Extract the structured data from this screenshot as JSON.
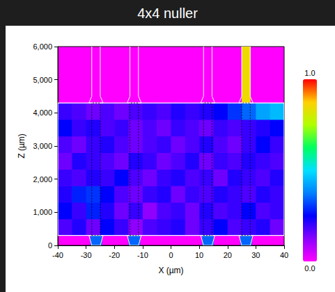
{
  "chart_data": {
    "type": "heatmap",
    "title": "4x4 nuller",
    "x_label": "X (µm)",
    "y_label": "Z (µm)",
    "xlim": [
      -40,
      40
    ],
    "xticks": [
      -40,
      -30,
      -20,
      -10,
      0,
      10,
      20,
      30,
      40
    ],
    "ylim": [
      0,
      6000
    ],
    "yticks": [
      0,
      1000,
      2000,
      3000,
      4000,
      5000,
      6000
    ],
    "x_bins": [
      -40,
      -35,
      -30,
      -25,
      -20,
      -15,
      -10,
      -5,
      0,
      5,
      10,
      15,
      20,
      25,
      30,
      35,
      40
    ],
    "z_bins": [
      300,
      800,
      1300,
      1800,
      2300,
      2800,
      3300,
      3800,
      4300
    ],
    "cells": [
      [
        0.18,
        0.22,
        0.15,
        0.25,
        0.2,
        0.12,
        0.18,
        0.2,
        0.22,
        0.15,
        0.2,
        0.25,
        0.18,
        0.2,
        0.22,
        0.15
      ],
      [
        0.25,
        0.2,
        0.28,
        0.22,
        0.15,
        0.2,
        0.12,
        0.18,
        0.2,
        0.15,
        0.22,
        0.18,
        0.2,
        0.25,
        0.18,
        0.2
      ],
      [
        0.22,
        0.28,
        0.3,
        0.25,
        0.18,
        0.15,
        0.2,
        0.22,
        0.15,
        0.2,
        0.18,
        0.22,
        0.2,
        0.18,
        0.22,
        0.2
      ],
      [
        0.2,
        0.18,
        0.22,
        0.2,
        0.25,
        0.18,
        0.15,
        0.2,
        0.22,
        0.18,
        0.2,
        0.15,
        0.22,
        0.2,
        0.18,
        0.22
      ],
      [
        0.15,
        0.22,
        0.2,
        0.18,
        0.15,
        0.22,
        0.2,
        0.15,
        0.18,
        0.22,
        0.15,
        0.2,
        0.18,
        0.22,
        0.2,
        0.18
      ],
      [
        0.18,
        0.15,
        0.2,
        0.22,
        0.18,
        0.15,
        0.18,
        0.2,
        0.15,
        0.18,
        0.22,
        0.18,
        0.15,
        0.2,
        0.25,
        0.2
      ],
      [
        0.25,
        0.2,
        0.22,
        0.18,
        0.2,
        0.15,
        0.18,
        0.15,
        0.2,
        0.18,
        0.15,
        0.2,
        0.18,
        0.2,
        0.22,
        0.25
      ],
      [
        0.2,
        0.18,
        0.15,
        0.18,
        0.15,
        0.18,
        0.2,
        0.18,
        0.22,
        0.2,
        0.22,
        0.25,
        0.3,
        0.35,
        0.42,
        0.45
      ]
    ],
    "fields": [
      {
        "x": [
          25,
          28
        ],
        "z": [
          4300,
          6000
        ],
        "value": 0.85
      },
      {
        "x": [
          -28.5,
          -24.5
        ],
        "z": [
          0,
          300
        ],
        "value": 0.35
      },
      {
        "x": [
          -15,
          -11
        ],
        "z": [
          0,
          300
        ],
        "value": 0.35
      },
      {
        "x": [
          11,
          15
        ],
        "z": [
          0,
          300
        ],
        "value": 0.35
      },
      {
        "x": [
          24.5,
          28.5
        ],
        "z": [
          0,
          300
        ],
        "value": 0.35
      }
    ],
    "colorbar": {
      "range": [
        0,
        1
      ],
      "ticks": [
        {
          "value": 0,
          "label": "0.0"
        },
        {
          "value": 1,
          "label": "1.0"
        }
      ]
    },
    "waveguides": {
      "x": [
        -26.5,
        -13,
        13,
        26.5
      ],
      "width": 3,
      "taper_width": 5,
      "taper_length": 200
    },
    "mmi": {
      "x": [
        -40,
        40
      ],
      "z": [
        300,
        4300
      ]
    }
  }
}
